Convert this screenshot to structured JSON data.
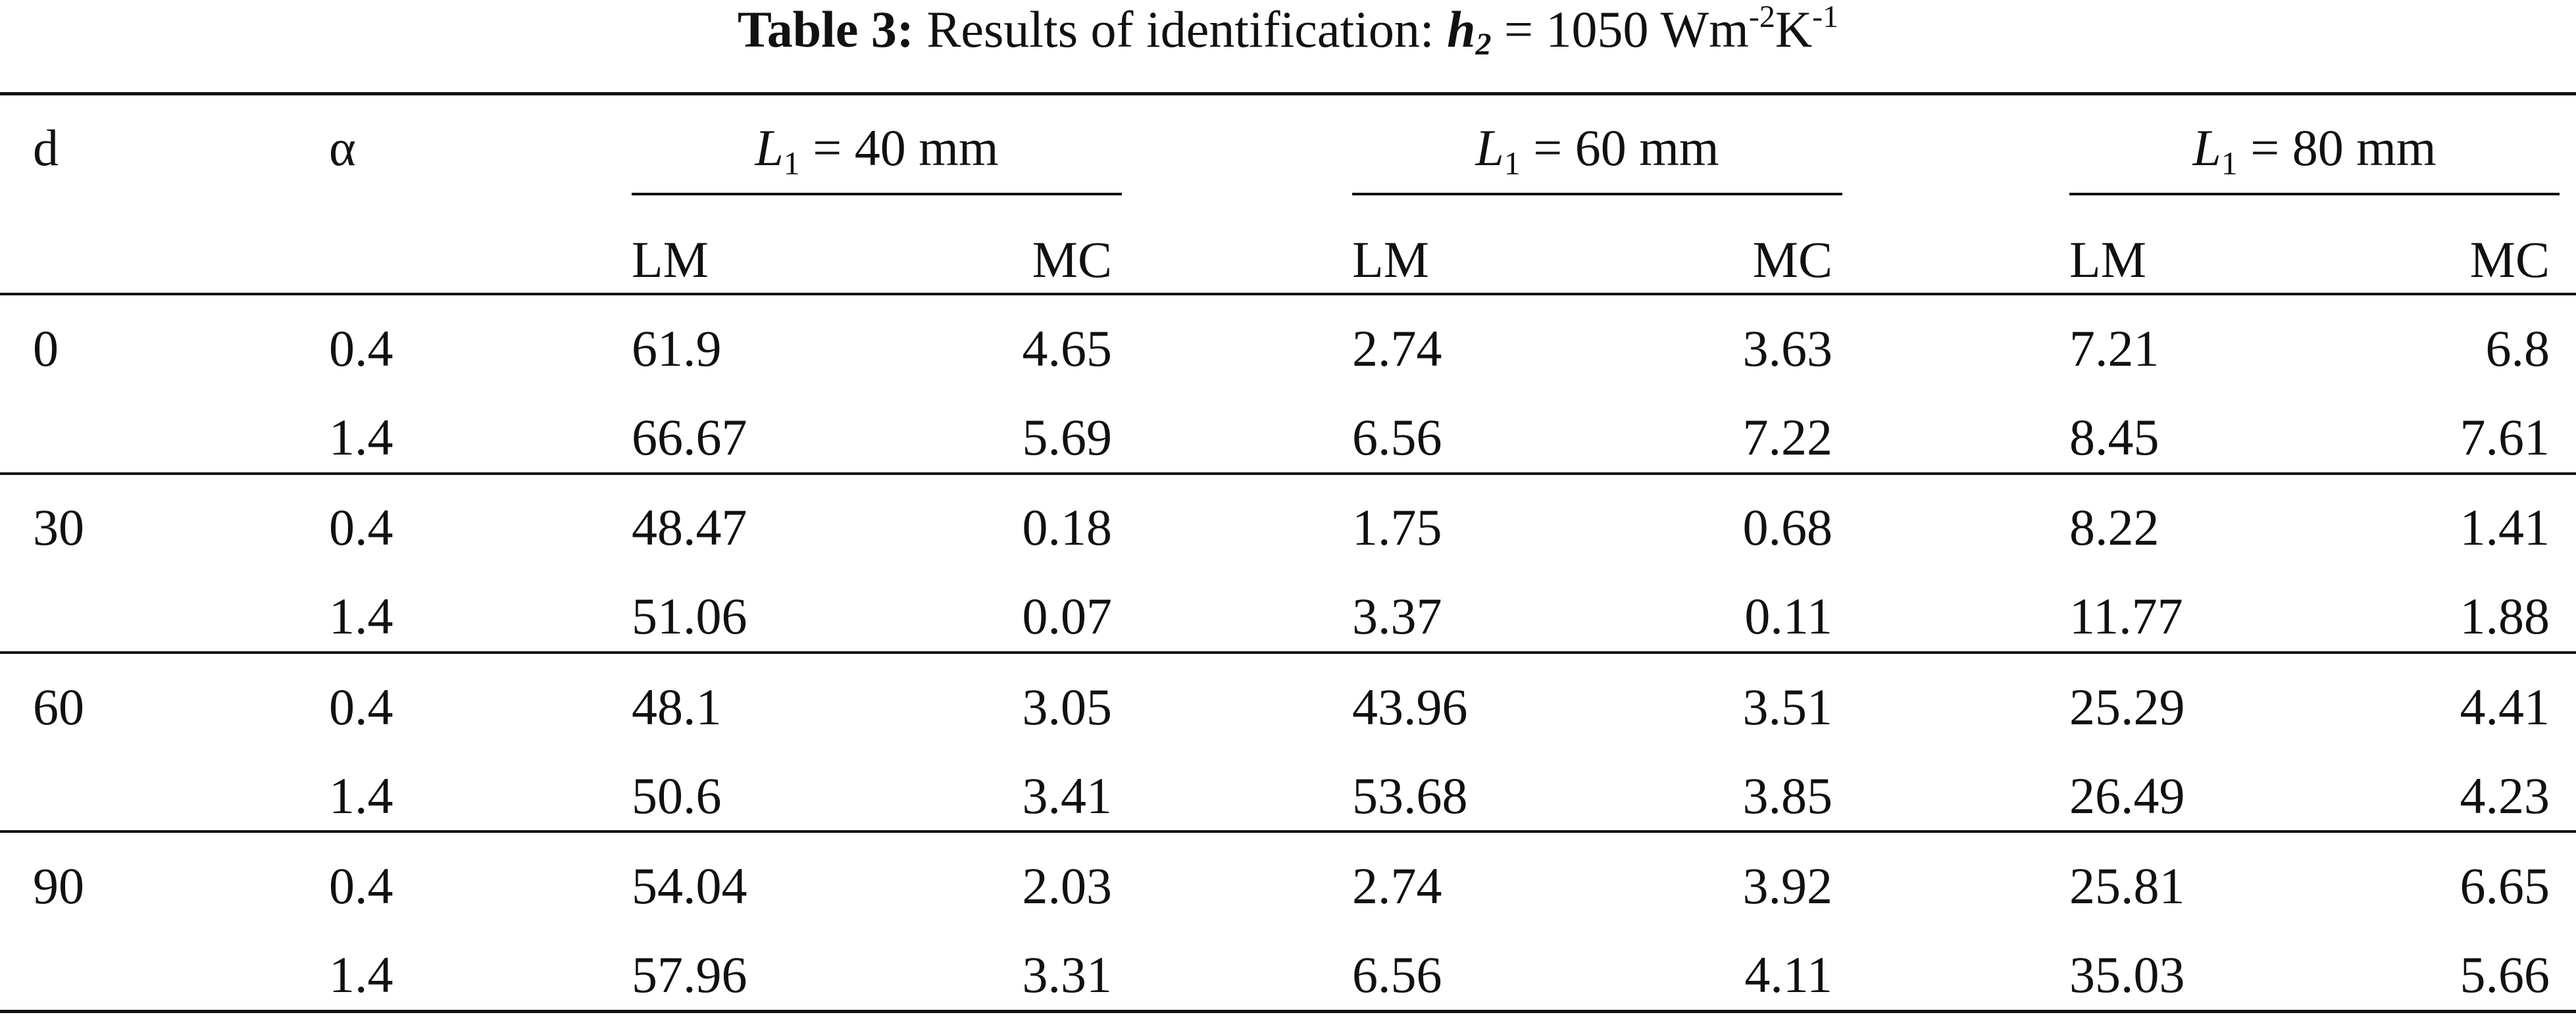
{
  "caption": {
    "label": "Table 3:",
    "text": "Results of identification:",
    "var_main": "h",
    "var_sub": "2",
    "eq": "= 1050 Wm",
    "unit_exp1": "-2",
    "unit_mid": "K",
    "unit_exp2": "-1"
  },
  "header": {
    "col_d": "d",
    "col_alpha": "α",
    "groups": [
      {
        "sym": "L",
        "sub": "1",
        "text": "= 40 mm"
      },
      {
        "sym": "L",
        "sub": "1",
        "text": "= 60 mm"
      },
      {
        "sym": "L",
        "sub": "1",
        "text": "= 80 mm"
      }
    ],
    "sub_lm": "LM",
    "sub_mc": "MC"
  },
  "rows": [
    {
      "d": "0",
      "alpha": "0.4",
      "v": [
        "61.9",
        "4.65",
        "2.74",
        "3.63",
        "7.21",
        "6.8"
      ]
    },
    {
      "d": "",
      "alpha": "1.4",
      "v": [
        "66.67",
        "5.69",
        "6.56",
        "7.22",
        "8.45",
        "7.61"
      ]
    },
    {
      "d": "30",
      "alpha": "0.4",
      "v": [
        "48.47",
        "0.18",
        "1.75",
        "0.68",
        "8.22",
        "1.41"
      ]
    },
    {
      "d": "",
      "alpha": "1.4",
      "v": [
        "51.06",
        "0.07",
        "3.37",
        "0.11",
        "11.77",
        "1.88"
      ]
    },
    {
      "d": "60",
      "alpha": "0.4",
      "v": [
        "48.1",
        "3.05",
        "43.96",
        "3.51",
        "25.29",
        "4.41"
      ]
    },
    {
      "d": "",
      "alpha": "1.4",
      "v": [
        "50.6",
        "3.41",
        "53.68",
        "3.85",
        "26.49",
        "4.23"
      ]
    },
    {
      "d": "90",
      "alpha": "0.4",
      "v": [
        "54.04",
        "2.03",
        "2.74",
        "3.92",
        "25.81",
        "6.65"
      ]
    },
    {
      "d": "",
      "alpha": "1.4",
      "v": [
        "57.96",
        "3.31",
        "6.56",
        "4.11",
        "35.03",
        "5.66"
      ]
    }
  ]
}
